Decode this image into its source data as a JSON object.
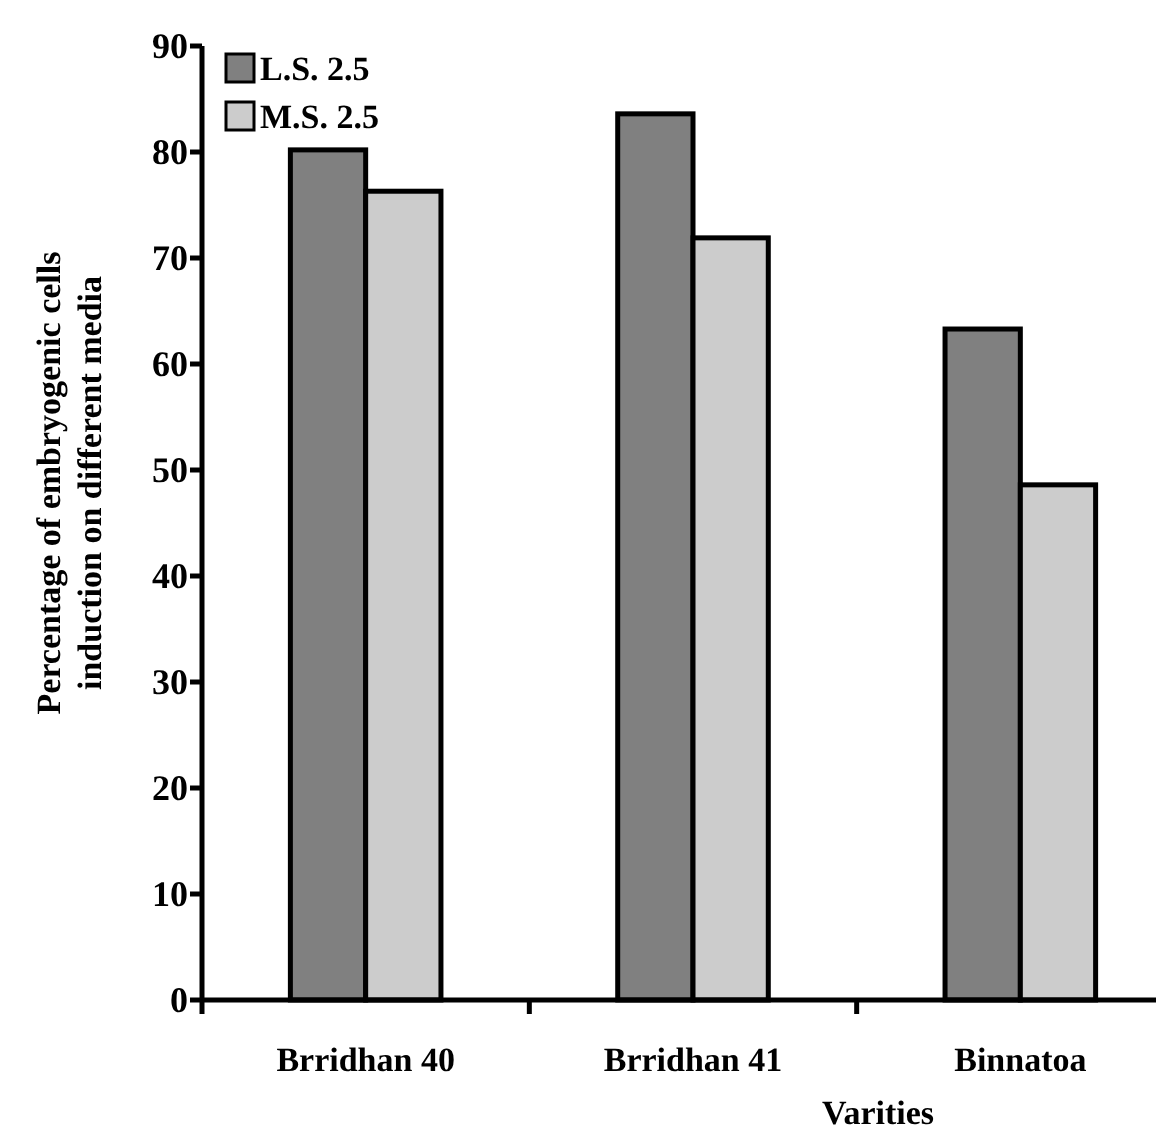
{
  "chart_data": {
    "type": "bar",
    "xlabel": "Varities",
    "ylabel": "Percentage of embryogenic cells induction on different media",
    "categories": [
      "Brridhan 40",
      "Brridhan 41",
      "Binnatoa"
    ],
    "series": [
      {
        "name": "L.S. 2.5",
        "color": "#808080",
        "values": [
          80.2,
          83.6,
          63.3
        ]
      },
      {
        "name": "M.S. 2.5",
        "color": "#cccccc",
        "values": [
          76.3,
          71.9,
          48.6
        ]
      }
    ],
    "ylim": [
      0,
      90
    ],
    "yticks": [
      0,
      10,
      20,
      30,
      40,
      50,
      60,
      70,
      80,
      90
    ],
    "legend": "top left",
    "grid": false
  }
}
